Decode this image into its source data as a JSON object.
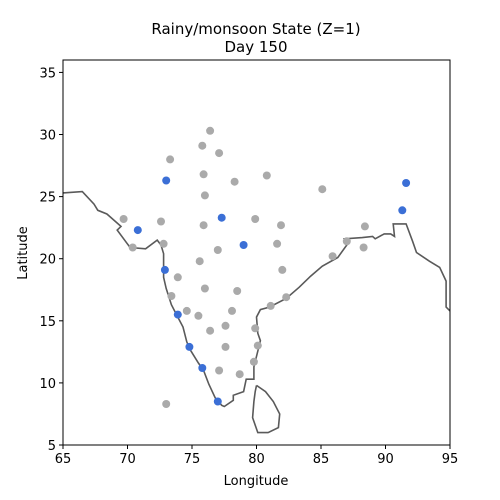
{
  "chart_data": {
    "type": "scatter",
    "title_line1": "Rainy/monsoon State (Z=1)",
    "title_line2": "Day 150",
    "xlabel": "Longitude",
    "ylabel": "Latitude",
    "xlim": [
      65,
      95
    ],
    "ylim": [
      5,
      36
    ],
    "xticks": [
      65,
      70,
      75,
      80,
      85,
      90,
      95
    ],
    "yticks": [
      5,
      10,
      15,
      20,
      25,
      30,
      35
    ],
    "grid": false,
    "colors": {
      "rainy": "#3b6fd6",
      "dry": "#aaaaaa",
      "coastline": "#5a5a5a"
    },
    "series": [
      {
        "state": "rainy",
        "points": [
          [
            73.0,
            26.3
          ],
          [
            70.8,
            22.3
          ],
          [
            77.3,
            23.3
          ],
          [
            79.0,
            21.1
          ],
          [
            72.9,
            19.1
          ],
          [
            73.9,
            15.5
          ],
          [
            74.8,
            12.9
          ],
          [
            75.8,
            11.2
          ],
          [
            77.0,
            8.5
          ],
          [
            91.3,
            23.9
          ],
          [
            91.6,
            26.1
          ]
        ]
      },
      {
        "state": "dry",
        "points": [
          [
            76.4,
            30.3
          ],
          [
            73.3,
            28.0
          ],
          [
            75.8,
            29.1
          ],
          [
            77.1,
            28.5
          ],
          [
            75.9,
            26.8
          ],
          [
            78.3,
            26.2
          ],
          [
            80.8,
            26.7
          ],
          [
            76.0,
            25.1
          ],
          [
            85.1,
            25.6
          ],
          [
            69.7,
            23.2
          ],
          [
            72.6,
            23.0
          ],
          [
            75.9,
            22.7
          ],
          [
            79.9,
            23.2
          ],
          [
            81.9,
            22.7
          ],
          [
            72.8,
            21.2
          ],
          [
            70.4,
            20.9
          ],
          [
            77.0,
            20.7
          ],
          [
            81.6,
            21.2
          ],
          [
            75.6,
            19.8
          ],
          [
            73.9,
            18.5
          ],
          [
            82.0,
            19.1
          ],
          [
            76.0,
            17.6
          ],
          [
            78.5,
            17.4
          ],
          [
            87.0,
            21.4
          ],
          [
            88.4,
            22.6
          ],
          [
            88.3,
            20.9
          ],
          [
            85.9,
            20.2
          ],
          [
            73.4,
            17.0
          ],
          [
            74.6,
            15.8
          ],
          [
            75.5,
            15.4
          ],
          [
            78.1,
            15.8
          ],
          [
            81.1,
            16.2
          ],
          [
            82.3,
            16.9
          ],
          [
            77.6,
            14.6
          ],
          [
            79.9,
            14.4
          ],
          [
            76.4,
            14.2
          ],
          [
            80.1,
            13.0
          ],
          [
            77.6,
            12.9
          ],
          [
            79.8,
            11.7
          ],
          [
            77.1,
            11.0
          ],
          [
            78.7,
            10.7
          ],
          [
            73.0,
            8.3
          ]
        ]
      }
    ],
    "coastline": [
      [
        [
          65.0,
          25.3
        ],
        [
          66.5,
          25.4
        ],
        [
          67.4,
          24.4
        ],
        [
          67.7,
          23.9
        ],
        [
          68.4,
          23.6
        ],
        [
          69.5,
          22.6
        ],
        [
          69.2,
          22.3
        ],
        [
          70.2,
          20.9
        ],
        [
          71.4,
          20.8
        ],
        [
          72.3,
          21.5
        ],
        [
          72.6,
          21.1
        ],
        [
          72.8,
          20.4
        ],
        [
          72.8,
          19.0
        ],
        [
          72.8,
          18.5
        ],
        [
          73.0,
          17.6
        ],
        [
          73.4,
          16.3
        ],
        [
          73.8,
          15.5
        ],
        [
          74.3,
          14.5
        ],
        [
          74.6,
          13.3
        ],
        [
          74.9,
          12.6
        ],
        [
          75.5,
          11.6
        ],
        [
          75.9,
          11.0
        ],
        [
          76.3,
          9.9
        ],
        [
          76.8,
          8.8
        ],
        [
          77.3,
          8.2
        ],
        [
          77.5,
          8.1
        ],
        [
          78.2,
          8.6
        ],
        [
          78.2,
          9.0
        ],
        [
          79.0,
          9.3
        ],
        [
          79.2,
          10.3
        ],
        [
          79.8,
          10.3
        ],
        [
          79.8,
          11.3
        ],
        [
          80.3,
          13.4
        ],
        [
          80.1,
          14.0
        ],
        [
          80.0,
          15.3
        ],
        [
          80.3,
          15.9
        ],
        [
          81.0,
          16.1
        ],
        [
          82.3,
          16.8
        ],
        [
          83.3,
          17.7
        ],
        [
          84.2,
          18.6
        ],
        [
          85.1,
          19.4
        ],
        [
          86.3,
          20.1
        ],
        [
          87.0,
          21.1
        ],
        [
          86.8,
          21.6
        ],
        [
          88.2,
          21.7
        ],
        [
          89.0,
          21.8
        ],
        [
          89.2,
          21.6
        ],
        [
          89.9,
          22.0
        ],
        [
          90.4,
          22.0
        ],
        [
          90.7,
          21.8
        ],
        [
          90.6,
          22.8
        ],
        [
          91.6,
          22.8
        ],
        [
          92.1,
          21.4
        ],
        [
          92.4,
          20.5
        ],
        [
          93.4,
          19.8
        ],
        [
          94.2,
          19.3
        ],
        [
          94.7,
          18.2
        ],
        [
          94.7,
          16.1
        ],
        [
          95.0,
          15.8
        ]
      ],
      [
        [
          80.0,
          9.8
        ],
        [
          80.7,
          9.3
        ],
        [
          81.3,
          8.5
        ],
        [
          81.8,
          7.5
        ],
        [
          81.7,
          6.4
        ],
        [
          80.9,
          6.0
        ],
        [
          80.1,
          6.0
        ],
        [
          79.7,
          7.2
        ],
        [
          79.8,
          8.5
        ],
        [
          79.9,
          9.3
        ],
        [
          80.0,
          9.8
        ]
      ]
    ]
  }
}
